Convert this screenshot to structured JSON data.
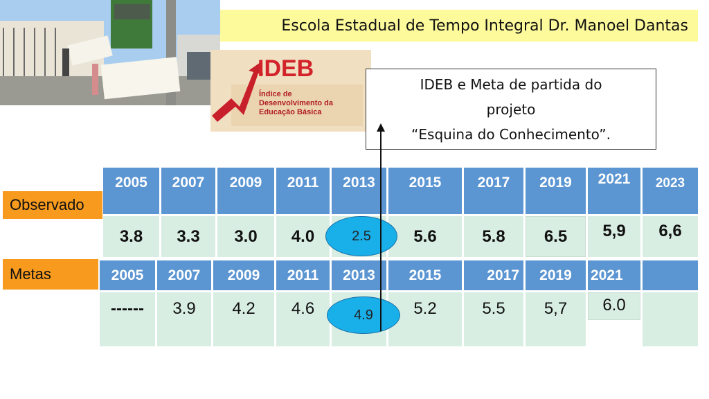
{
  "school_title": "Escola Estadual de Tempo Integral Dr. Manoel Dantas",
  "logo": {
    "word": "IDEB",
    "subtitle_lines": [
      "Índice de",
      "Desenvolvimento da",
      "Educação Básica"
    ]
  },
  "callout": {
    "line1": "IDEB e Meta de partida do",
    "line2": "projeto",
    "line3": "“Esquina do Conhecimento”."
  },
  "observado": {
    "label": "Observado",
    "years": [
      "2005",
      "2007",
      "2009",
      "2011",
      "2013",
      "2015",
      "2017",
      "2019",
      "2021",
      "2023"
    ],
    "values": [
      "3.8",
      "3.3",
      "3.0",
      "4.0",
      "2.5",
      "5.6",
      "5.8",
      "6.5",
      "5,9",
      "6,6"
    ]
  },
  "metas": {
    "label": "Metas",
    "years": [
      "2005",
      "2007",
      "2009",
      "2011",
      "2013",
      "2015",
      "2017",
      "2019",
      "2021",
      ""
    ],
    "values": [
      "------",
      "3.9",
      "4.2",
      "4.6",
      "4.9",
      "5.2",
      "5.5",
      "5,7",
      "6.0",
      ""
    ]
  },
  "colors": {
    "header_blue": "#5b95d2",
    "value_green": "#d9eee3",
    "label_orange": "#f79a1e",
    "title_yellow": "#fdfa9c",
    "highlight_ellipse": "#19b0ea"
  }
}
